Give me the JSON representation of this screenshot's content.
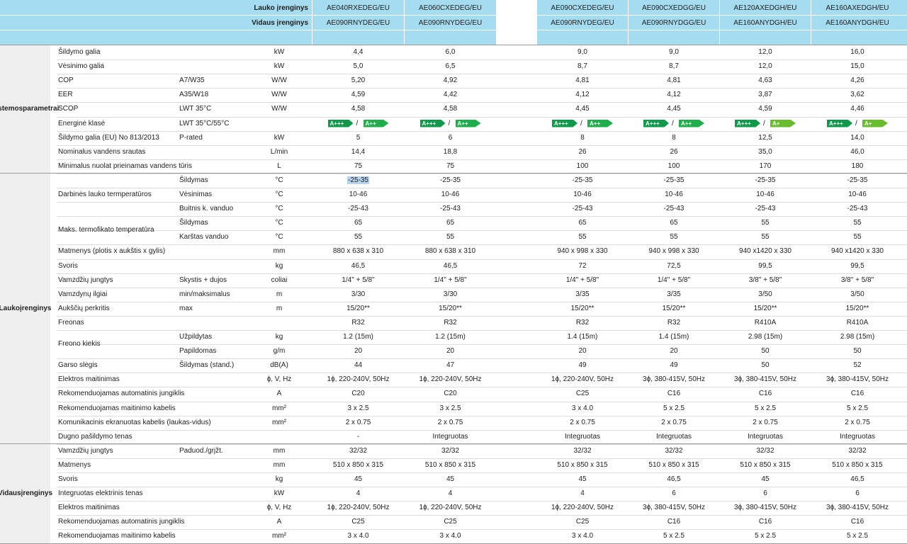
{
  "header": {
    "outdoor_label": "Lauko įrenginys",
    "indoor_label": "Vidaus įrenginys",
    "models": [
      {
        "outdoor": "AE040RXEDEG/EU",
        "indoor": "AE090RNYDEG/EU"
      },
      {
        "outdoor": "AE060CXEDEG/EU",
        "indoor": "AE090RNYDEG/EU"
      },
      {
        "outdoor": "AE090CXEDEG/EU",
        "indoor": "AE090RNYDEG/EU"
      },
      {
        "outdoor": "AE090CXEDGG/EU",
        "indoor": "AE090RNYDGG/EU"
      },
      {
        "outdoor": "AE120AXEDGH/EU",
        "indoor": "AE160ANYDGH/EU"
      },
      {
        "outdoor": "AE160AXEDGH/EU",
        "indoor": "AE160ANYDGH/EU"
      }
    ]
  },
  "groups": [
    {
      "label_lines": [
        "Sistemos",
        "parametrai"
      ]
    },
    {
      "label_lines": [
        "Lauko",
        "įrenginys"
      ]
    },
    {
      "label_lines": [
        "Vidaus",
        "įrenginys"
      ]
    }
  ],
  "merged_labels": [
    "Darbinės lauko termperatūros",
    "Maks. termofikato temperatūra",
    "Freono kiekis"
  ],
  "selection": {
    "text": "-25-35"
  },
  "rows": [
    {
      "label": "Šildymo galia",
      "cond": "",
      "unit": "kW",
      "values": [
        "4,4",
        "6,0",
        "9,0",
        "9,0",
        "12,0",
        "16,0"
      ]
    },
    {
      "label": "Vėsinimo galia",
      "cond": "",
      "unit": "kW",
      "values": [
        "5,0",
        "6,5",
        "8,7",
        "8,7",
        "12,0",
        "15,0"
      ]
    },
    {
      "label": "COP",
      "cond": "A7/W35",
      "unit": "W/W",
      "values": [
        "5,20",
        "4,92",
        "4,81",
        "4,81",
        "4,63",
        "4,26"
      ]
    },
    {
      "label": "EER",
      "cond": "A35/W18",
      "unit": "W/W",
      "values": [
        "4,59",
        "4,42",
        "4,12",
        "4,12",
        "3,87",
        "3,62"
      ]
    },
    {
      "label": "SCOP",
      "cond": "LWT 35°C",
      "unit": "W/W",
      "values": [
        "4,58",
        "4,58",
        "4,45",
        "4,45",
        "4,59",
        "4,46"
      ]
    },
    {
      "label": "Energinė klasė",
      "cond": "LWT 35°C/55°C",
      "unit": "",
      "values": [
        "",
        "",
        "",
        "",
        "",
        ""
      ],
      "energy": [
        [
          "A+++",
          "A++"
        ],
        [
          "A+++",
          "A++"
        ],
        [
          "A+++",
          "A++"
        ],
        [
          "A+++",
          "A++"
        ],
        [
          "A+++",
          "A+"
        ],
        [
          "A+++",
          "A+"
        ]
      ],
      "slash": "/"
    },
    {
      "label": "Šildymo galia (EU) No 813/2013",
      "cond": "P-rated",
      "unit": "kW",
      "values": [
        "5",
        "6",
        "8",
        "8",
        "12,5",
        "14,0"
      ]
    },
    {
      "label": "Nominalus vandens srautas",
      "cond": "",
      "unit": "L/min",
      "values": [
        "14,4",
        "18,8",
        "26",
        "26",
        "35,0",
        "46,0"
      ]
    },
    {
      "label": "Minimalus nuolat prieinamas vandens tūris",
      "cond": "",
      "unit": "L",
      "values": [
        "75",
        "75",
        "100",
        "100",
        "170",
        "180"
      ]
    },
    {
      "label": "",
      "cond": "Šildymas",
      "unit": "°C",
      "values": [
        "-25-35",
        "-25-35",
        "-25-35",
        "-25-35",
        "-25-35",
        "-25-35"
      ]
    },
    {
      "label": "",
      "cond": "Vėsinimas",
      "unit": "°C",
      "values": [
        "10-46",
        "10-46",
        "10-46",
        "10-46",
        "10-46",
        "10-46"
      ]
    },
    {
      "label": "",
      "cond": "Buitnis k. vanduo",
      "unit": "°C",
      "values": [
        "-25-43",
        "-25-43",
        "-25-43",
        "-25-43",
        "-25-43",
        "-25-43"
      ]
    },
    {
      "label": "",
      "cond": "Šildymas",
      "unit": "°C",
      "values": [
        "65",
        "65",
        "65",
        "65",
        "55",
        "55"
      ]
    },
    {
      "label": "",
      "cond": "Karštas vanduo",
      "unit": "°C",
      "values": [
        "55",
        "55",
        "55",
        "55",
        "55",
        "55"
      ]
    },
    {
      "label": "Matmenys (plotis x aukštis x gylis)",
      "cond": "",
      "unit": "mm",
      "values": [
        "880 x 638 x 310",
        "880 x 638 x 310",
        "940 x 998 x 330",
        "940 x 998 x 330",
        "940 x1420 x 330",
        "940 x1420 x 330"
      ]
    },
    {
      "label": "Svoris",
      "cond": "",
      "unit": "kg",
      "values": [
        "46,5",
        "46,5",
        "72",
        "72,5",
        "99,5",
        "99,5"
      ]
    },
    {
      "label": "Vamzdžių jungtys",
      "cond": "Skystis + dujos",
      "unit": "coliai",
      "values": [
        "1/4\" + 5/8\"",
        "1/4\" + 5/8\"",
        "1/4\" + 5/8\"",
        "1/4\" + 5/8\"",
        "3/8\" + 5/8\"",
        "3/8\" + 5/8\""
      ]
    },
    {
      "label": "Vamzdynų ilgiai",
      "cond": "min/maksimalus",
      "unit": "m",
      "values": [
        "3/30",
        "3/30",
        "3/35",
        "3/35",
        "3/50",
        "3/50"
      ]
    },
    {
      "label": "Aukščių perkritis",
      "cond": "max",
      "unit": "m",
      "values": [
        "15/20**",
        "15/20**",
        "15/20**",
        "15/20**",
        "15/20**",
        "15/20**"
      ]
    },
    {
      "label": "Freonas",
      "cond": "",
      "unit": "",
      "values": [
        "R32",
        "R32",
        "R32",
        "R32",
        "R410A",
        "R410A"
      ]
    },
    {
      "label": "",
      "cond": "Užpildytas",
      "unit": "kg",
      "values": [
        "1.2 (15m)",
        "1.2 (15m)",
        "1.4 (15m)",
        "1.4 (15m)",
        "2.98 (15m)",
        "2.98 (15m)"
      ]
    },
    {
      "label": "",
      "cond": "Papildomas",
      "unit": "g/m",
      "values": [
        "20",
        "20",
        "20",
        "20",
        "50",
        "50"
      ]
    },
    {
      "label": "Garso slėgis",
      "cond": "Šildymas (stand.)",
      "unit": "dB(A)",
      "values": [
        "44",
        "47",
        "49",
        "49",
        "50",
        "52"
      ]
    },
    {
      "label": "Elektros maitinimas",
      "cond": "",
      "unit": "ɸ, V, Hz",
      "values": [
        "1ɸ, 220-240V, 50Hz",
        "1ɸ, 220-240V, 50Hz",
        "1ɸ, 220-240V, 50Hz",
        "3ɸ, 380-415V, 50Hz",
        "3ɸ, 380-415V, 50Hz",
        "3ɸ, 380-415V, 50Hz"
      ]
    },
    {
      "label": "Rekomenduojamas automatinis jungiklis",
      "cond": "",
      "unit": "A",
      "values": [
        "C20",
        "C20",
        "C25",
        "C16",
        "C16",
        "C16"
      ]
    },
    {
      "label": "Rekomenduojamas maitinimo kabelis",
      "cond": "",
      "unit": "mm²",
      "values": [
        "3 x 2.5",
        "3 x 2.5",
        "3 x 4.0",
        "5 x 2.5",
        "5 x 2.5",
        "5 x 2.5"
      ]
    },
    {
      "label": "Komunikacinis ekranuotas kabelis (laukas-vidus)",
      "cond": "",
      "unit": "mm²",
      "values": [
        "2 x 0.75",
        "2 x 0.75",
        "2 x 0.75",
        "2 x 0.75",
        "2 x 0.75",
        "2 x 0.75"
      ]
    },
    {
      "label": "Dugno pašildymo tenas",
      "cond": "",
      "unit": "",
      "values": [
        "-",
        "Integruotas",
        "Integruotas",
        "Integruotas",
        "Integruotas",
        "Integruotas"
      ]
    },
    {
      "label": "Vamzdžių jungtys",
      "cond": "Paduod./grįžt.",
      "unit": "mm",
      "values": [
        "32/32",
        "32/32",
        "32/32",
        "32/32",
        "32/32",
        "32/32"
      ]
    },
    {
      "label": "Matmenys",
      "cond": "",
      "unit": "mm",
      "values": [
        "510 x 850 x 315",
        "510 x 850 x 315",
        "510 x 850 x 315",
        "510 x 850 x 315",
        "510 x 850 x 315",
        "510 x 850 x 315"
      ]
    },
    {
      "label": "Svoris",
      "cond": "",
      "unit": "kg",
      "values": [
        "45",
        "45",
        "45",
        "46,5",
        "45",
        "46,5"
      ]
    },
    {
      "label": "Integruotas elektrinis tenas",
      "cond": "",
      "unit": "kW",
      "values": [
        "4",
        "4",
        "4",
        "6",
        "6",
        "6"
      ]
    },
    {
      "label": "Elektros maitinimas",
      "cond": "",
      "unit": "ɸ, V, Hz",
      "values": [
        "1ɸ, 220-240V, 50Hz",
        "1ɸ, 220-240V, 50Hz",
        "1ɸ, 220-240V, 50Hz",
        "3ɸ, 380-415V, 50Hz",
        "3ɸ, 380-415V, 50Hz",
        "3ɸ, 380-415V, 50Hz"
      ]
    },
    {
      "label": "Rekomenduojamas automatinis jungiklis",
      "cond": "",
      "unit": "A",
      "values": [
        "C25",
        "C25",
        "C25",
        "C16",
        "C16",
        "C16"
      ]
    },
    {
      "label": "Rekomenduojamas maitinimo kabelis",
      "cond": "",
      "unit": "mm²",
      "values": [
        "3 x 4.0",
        "3 x 4.0",
        "3 x 4.0",
        "5 x 2.5",
        "5 x 2.5",
        "5 x 2.5"
      ]
    }
  ]
}
